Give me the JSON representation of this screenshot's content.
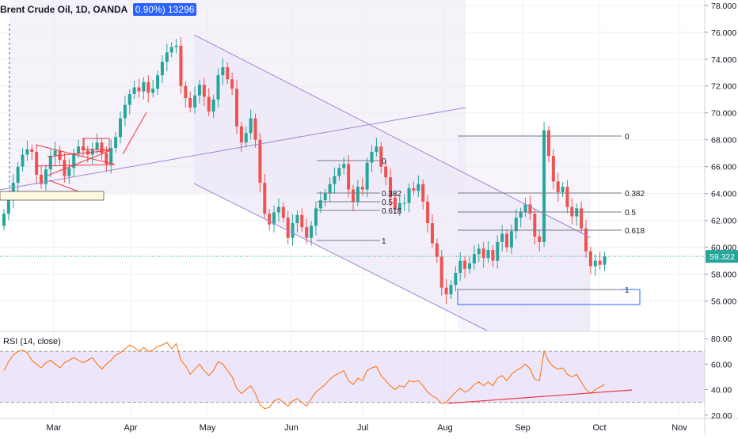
{
  "legend": {
    "symbol_title": "Brent Crude Oil, 1D, OANDA",
    "change_label": "0.90%) 13296"
  },
  "rsi_title": "RSI (14, close)",
  "price_label": "59.322",
  "colors": {
    "up": "#26a69a",
    "down": "#ef5350",
    "rsi_line": "#ff6d00",
    "rsi_band": "#e1d5f7",
    "channel": "#9c88d6",
    "fib": "#787b86",
    "pattern": "#f23645",
    "support_box": "#2962ff",
    "price_line": "#26a69a"
  },
  "chart_data": [
    {
      "type": "candlestick",
      "title": "Brent Crude Oil, 1D, OANDA",
      "x_tick_labels": [
        "Mar",
        "Apr",
        "May",
        "Jun",
        "Jul",
        "Aug",
        "Sep",
        "Oct",
        "Nov"
      ],
      "y_tick_labels": [
        "56.000",
        "58.000",
        "60.000",
        "62.000",
        "64.000",
        "66.000",
        "68.000",
        "70.000",
        "72.000",
        "74.000",
        "76.000",
        "78.000"
      ],
      "ylim": [
        53.8,
        78.4
      ],
      "last_price": 59.322,
      "series": [
        {
          "name": "Brent Crude Oil",
          "close": [
            62.5,
            63.5,
            64.8,
            66.0,
            66.9,
            67.3,
            67.1,
            65.4,
            64.7,
            65.8,
            66.8,
            67.2,
            66.5,
            65.3,
            65.9,
            67.0,
            67.5,
            67.2,
            66.9,
            67.3,
            67.8,
            67.0,
            66.2,
            67.4,
            68.2,
            69.6,
            70.6,
            71.4,
            71.9,
            71.6,
            72.3,
            71.5,
            71.8,
            72.8,
            73.8,
            74.5,
            74.9,
            75.0,
            72.0,
            71.1,
            70.4,
            71.3,
            72.1,
            71.2,
            70.1,
            71.0,
            72.8,
            73.4,
            72.5,
            71.8,
            69.0,
            67.8,
            68.5,
            69.6,
            68.0,
            64.8,
            62.5,
            61.7,
            62.6,
            63.0,
            62.2,
            60.7,
            61.8,
            62.4,
            61.5,
            60.7,
            61.6,
            62.9,
            63.5,
            64.0,
            64.7,
            65.3,
            65.9,
            66.2,
            64.3,
            63.4,
            64.5,
            64.3,
            66.3,
            67.1,
            67.5,
            66.0,
            65.2,
            63.7,
            62.8,
            63.3,
            63.3,
            64.4,
            64.2,
            64.7,
            63.4,
            61.8,
            60.3,
            59.3,
            57.0,
            56.5,
            57.2,
            58.1,
            59.0,
            58.4,
            58.8,
            59.5,
            59.9,
            59.2,
            59.8,
            59.0,
            60.4,
            61.0,
            60.0,
            61.2,
            62.2,
            62.6,
            63.2,
            62.5,
            60.8,
            60.4,
            68.7,
            66.8,
            64.9,
            64.1,
            64.5,
            63.0,
            62.3,
            62.9,
            61.4,
            59.7,
            58.6,
            59.0,
            58.7,
            59.322
          ],
          "open_first": 61.6
        }
      ]
    },
    {
      "type": "line",
      "title": "RSI (14, close)",
      "y_tick_labels": [
        "20.00",
        "40.00",
        "60.00",
        "80.00"
      ],
      "ylim": [
        18,
        85
      ],
      "band": [
        30,
        70
      ],
      "series": [
        {
          "name": "RSI (14, close)",
          "values": [
            55,
            62,
            67,
            70,
            71,
            69,
            63,
            60,
            57,
            61,
            63,
            60,
            57,
            61,
            63,
            65,
            63,
            61,
            63,
            65,
            60,
            56,
            60,
            63,
            67,
            69,
            72,
            75,
            73,
            70,
            73,
            70,
            71,
            74,
            75,
            77,
            72,
            76,
            63,
            59,
            52,
            56,
            60,
            55,
            51,
            55,
            62,
            60,
            55,
            50,
            41,
            37,
            40,
            43,
            37,
            28,
            25,
            26,
            31,
            33,
            30,
            27,
            31,
            33,
            30,
            27,
            33,
            38,
            41,
            44,
            48,
            51,
            53,
            55,
            47,
            44,
            49,
            47,
            55,
            57,
            58,
            51,
            47,
            43,
            40,
            43,
            42,
            47,
            46,
            47,
            43,
            38,
            35,
            33,
            29,
            30,
            34,
            38,
            41,
            38,
            40,
            44,
            46,
            43,
            46,
            43,
            49,
            51,
            47,
            52,
            55,
            57,
            60,
            56,
            48,
            47,
            70,
            62,
            58,
            56,
            57,
            52,
            50,
            52,
            46,
            40,
            37,
            40,
            42,
            44
          ]
        }
      ]
    }
  ]
}
